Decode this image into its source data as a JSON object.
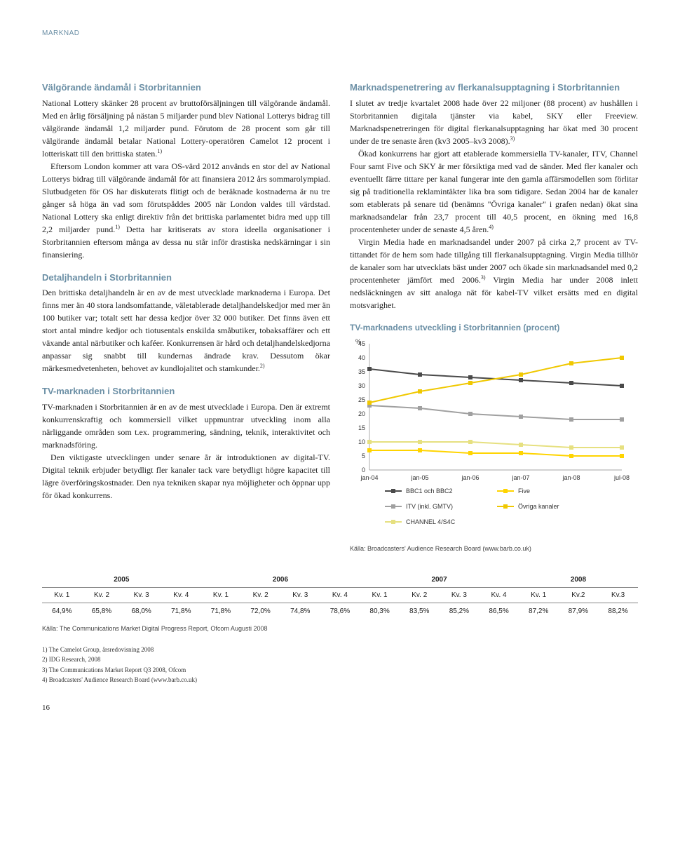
{
  "section_label": "MARKNAD",
  "left": {
    "h1": "Välgörande ändamål i Storbritannien",
    "p1": "National Lottery skänker 28 procent av bruttoförsäljningen till välgörande ändamål. Med en årlig försäljning på nästan 5 miljarder pund blev National Lotterys bidrag till välgörande ändamål 1,2 miljarder pund. Förutom de 28 procent som går till välgörande ändamål betalar National Lottery-operatören Camelot 12 procent i lotteriskatt till den brittiska staten.",
    "p1_sup": "1)",
    "p2": "Eftersom London kommer att vara OS-värd 2012 används en stor del av National Lotterys bidrag till välgörande ändamål för att finansiera 2012 års sommarolympiad. Slutbudgeten för OS har diskuterats flitigt och de beräknade kostnaderna är nu tre gånger så höga än vad som förutspåddes 2005 när London valdes till värdstad. National Lottery ska enligt direktiv från det brittiska parlamentet bidra med upp till 2,2 miljarder pund.",
    "p2_sup": "1)",
    "p2b": " Detta har kritiserats av stora ideella organisationer i Storbritannien eftersom många av dessa nu står inför drastiska nedskärningar i sin finansiering.",
    "h2": "Detaljhandeln i Storbritannien",
    "p3": "Den brittiska detaljhandeln är en av de mest utvecklade marknaderna i Europa. Det finns mer än 40 stora landsomfattande, väletablerade detaljhandelskedjor med mer än 100 butiker var; totalt sett har dessa kedjor över 32 000 butiker. Det finns även ett stort antal mindre kedjor och tiotusentals enskilda småbutiker, tobaksaffärer och ett växande antal närbutiker och kaféer. Konkurrensen är hård och detaljhandelskedjorna anpassar sig snabbt till kundernas ändrade krav. Dessutom ökar märkesmedvetenheten, behovet av kundlojalitet och stamkunder.",
    "p3_sup": "2)",
    "h3": "TV-marknaden i Storbritannien",
    "p4": "TV-marknaden i Storbritannien är en av de mest utvecklade i Europa. Den är extremt konkurrenskraftig och kommersiell vilket uppmuntrar utveckling inom alla närliggande områden som t.ex. programmering, sändning, teknik, interaktivitet och marknadsföring.",
    "p5": "Den viktigaste utvecklingen under senare år är introduktionen av digital-TV. Digital teknik erbjuder betydligt fler kanaler tack vare betydligt högre kapacitet till lägre överföringskostnader. Den nya tekniken skapar nya möjligheter och öppnar upp för ökad konkurrens."
  },
  "right": {
    "h1": "Marknadspenetrering av flerkanalsupptagning i Storbritannien",
    "p1": "I slutet av tredje kvartalet 2008 hade över 22 miljoner (88 procent) av hushållen i Storbritannien digitala tjänster via kabel, SKY eller Freeview. Marknadspenetreringen för digital flerkanalsupptagning har ökat med 30 procent under de tre senaste åren (kv3 2005–kv3 2008).",
    "p1_sup": "3)",
    "p2": "Ökad konkurrens har gjort att etablerade kommersiella TV-kanaler, ITV, Channel Four samt Five och SKY är mer försiktiga med vad de sänder. Med fler kanaler och eventuellt färre tittare per kanal fungerar inte den gamla affärsmodellen som förlitar sig på traditionella reklamintäkter lika bra som tidigare. Sedan 2004 har de kanaler som etablerats på senare tid (benämns \"Övriga kanaler\" i grafen nedan) ökat sina marknadsandelar från 23,7 procent till 40,5 procent, en ökning med 16,8 procentenheter under de senaste 4,5 åren.",
    "p2_sup": "4)",
    "p3": "Virgin Media hade en marknadsandel under 2007 på cirka 2,7 procent av TV-tittandet för de hem som hade tillgång till flerkanalsupptagning. Virgin Media tillhör de kanaler som har utvecklats bäst under 2007 och ökade sin marknadsandel med 0,2 procentenheter jämfört med 2006.",
    "p3_sup": "3)",
    "p3b": " Virgin Media har under 2008 inlett nedsläckningen av sitt analoga nät för kabel-TV vilket ersätts med en digital motsvarighet."
  },
  "chart": {
    "title": "TV-marknadens utveckling i Storbritannien (procent)",
    "y_unit": "%",
    "y_ticks": [
      0,
      5,
      10,
      15,
      20,
      25,
      30,
      35,
      40,
      45
    ],
    "x_labels": [
      "jan-04",
      "jan-05",
      "jan-06",
      "jan-07",
      "jan-08",
      "jul-08"
    ],
    "series": [
      {
        "name": "BBC1 och BBC2",
        "color": "#4a4a4a",
        "marker": "square",
        "values": [
          36,
          34,
          33,
          32,
          31,
          30
        ]
      },
      {
        "name": "ITV (inkl. GMTV)",
        "color": "#a0a0a0",
        "marker": "square",
        "values": [
          23,
          22,
          20,
          19,
          18,
          18
        ]
      },
      {
        "name": "CHANNEL 4/S4C",
        "color": "#e6e080",
        "marker": "square",
        "values": [
          10,
          10,
          10,
          9,
          8,
          8
        ]
      },
      {
        "name": "Five",
        "color": "#ffd400",
        "marker": "square",
        "values": [
          7,
          7,
          6,
          6,
          5,
          5
        ]
      },
      {
        "name": "Övriga kanaler",
        "color": "#f0c800",
        "marker": "square",
        "values": [
          24,
          28,
          31,
          34,
          38,
          40
        ]
      }
    ],
    "source": "Källa: Broadcasters' Audience Research Board (www.barb.co.uk)"
  },
  "table": {
    "years": [
      "2005",
      "2006",
      "2007",
      "2008"
    ],
    "quarters": [
      "Kv. 1",
      "Kv. 2",
      "Kv. 3",
      "Kv. 4",
      "Kv. 1",
      "Kv. 2",
      "Kv. 3",
      "Kv. 4",
      "Kv. 1",
      "Kv. 2",
      "Kv. 3",
      "Kv. 4",
      "Kv. 1",
      "Kv.2",
      "Kv.3"
    ],
    "values": [
      "64,9%",
      "65,8%",
      "68,0%",
      "71,8%",
      "71,8%",
      "72,0%",
      "74,8%",
      "78,6%",
      "80,3%",
      "83,5%",
      "85,2%",
      "86,5%",
      "87,2%",
      "87,9%",
      "88,2%"
    ],
    "source": "Källa: The Communications Market Digital Progress Report, Ofcom Augusti 2008"
  },
  "footnotes": [
    "1)  The Camelot Group, årsredovisning 2008",
    "2)  IDG Research, 2008",
    "3)  The Communications Market Report Q3 2008, Ofcom",
    "4)  Broadcasters' Audience Research Board (www.barb.co.uk)"
  ],
  "page_number": "16"
}
